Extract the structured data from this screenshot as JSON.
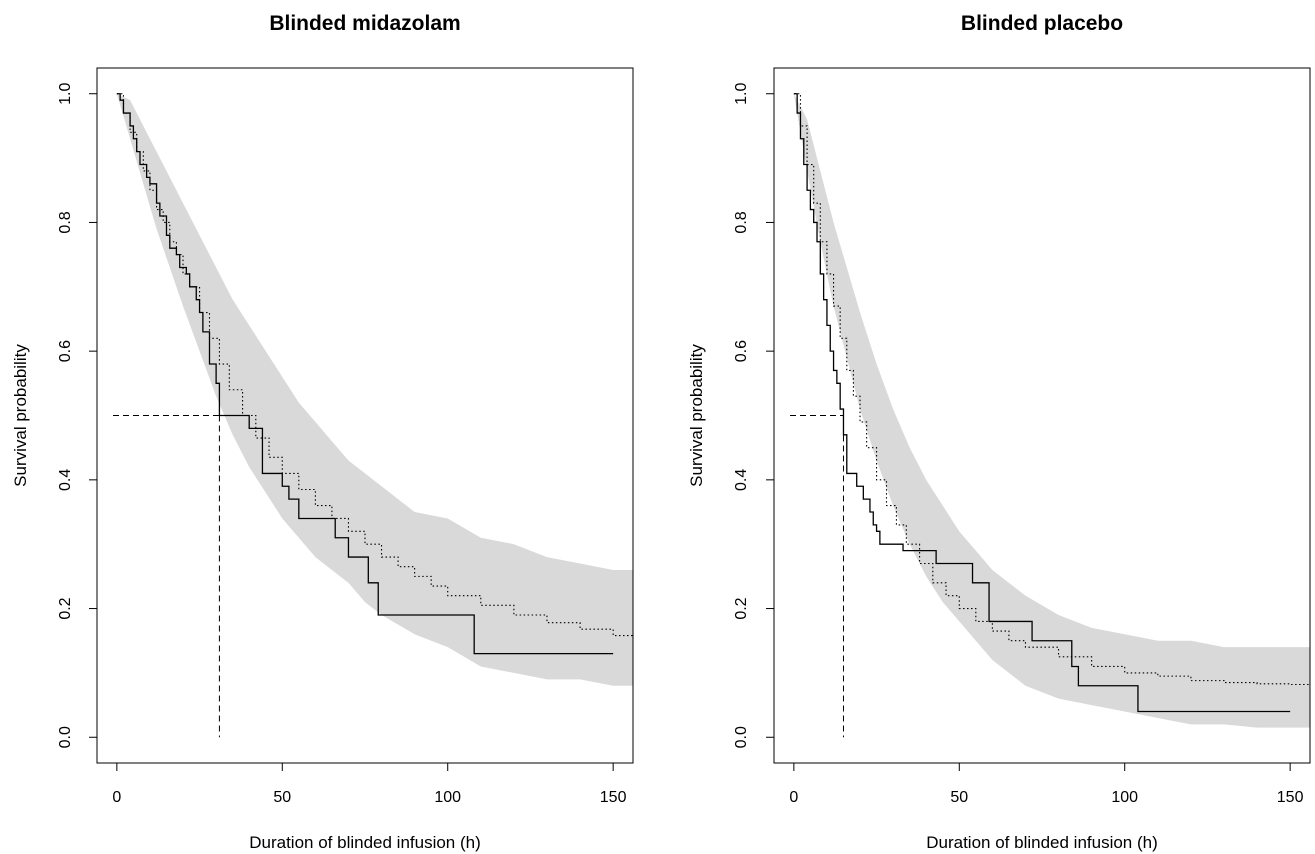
{
  "chart_data": [
    {
      "type": "line",
      "title": "Blinded midazolam",
      "xlabel": "Duration of blinded infusion (h)",
      "ylabel": "Survival probability",
      "xlim": [
        -6,
        156
      ],
      "ylim": [
        -0.04,
        1.04
      ],
      "xticks": [
        "0",
        "50",
        "100",
        "150"
      ],
      "yticks": [
        "0.0",
        "0.2",
        "0.4",
        "0.6",
        "0.8",
        "1.0"
      ],
      "grid": false,
      "legend": "none",
      "colors": {
        "band": "#d9d9d9",
        "line": "#000000"
      },
      "series": [
        {
          "style": "solid-step",
          "x": [
            0,
            1,
            2,
            4,
            5,
            6,
            7,
            9,
            10,
            12,
            13,
            15,
            16,
            18,
            19,
            21,
            22,
            24,
            25,
            26,
            28,
            30,
            31,
            40,
            44,
            50,
            52,
            55,
            66,
            70,
            76,
            79,
            108,
            150
          ],
          "y": [
            1.0,
            0.99,
            0.97,
            0.95,
            0.93,
            0.91,
            0.89,
            0.87,
            0.86,
            0.83,
            0.81,
            0.78,
            0.76,
            0.75,
            0.73,
            0.72,
            0.7,
            0.68,
            0.66,
            0.63,
            0.58,
            0.55,
            0.5,
            0.48,
            0.41,
            0.39,
            0.37,
            0.34,
            0.31,
            0.28,
            0.24,
            0.19,
            0.13,
            0.13
          ]
        },
        {
          "style": "dotted",
          "x": [
            0,
            2,
            4,
            6,
            8,
            10,
            12,
            14,
            16,
            18,
            20,
            22,
            25,
            28,
            31,
            34,
            38,
            42,
            46,
            50,
            55,
            60,
            65,
            70,
            75,
            80,
            85,
            90,
            95,
            100,
            110,
            120,
            130,
            140,
            150,
            156
          ],
          "y": [
            1.0,
            0.97,
            0.94,
            0.91,
            0.88,
            0.85,
            0.82,
            0.8,
            0.77,
            0.75,
            0.72,
            0.7,
            0.66,
            0.62,
            0.58,
            0.54,
            0.5,
            0.465,
            0.435,
            0.41,
            0.385,
            0.36,
            0.34,
            0.32,
            0.3,
            0.28,
            0.265,
            0.25,
            0.235,
            0.22,
            0.205,
            0.19,
            0.178,
            0.168,
            0.158,
            0.152
          ]
        }
      ],
      "band": {
        "x": [
          0,
          4,
          8,
          12,
          16,
          20,
          25,
          30,
          35,
          40,
          45,
          50,
          55,
          60,
          65,
          70,
          75,
          80,
          90,
          100,
          110,
          120,
          130,
          140,
          150,
          156
        ],
        "upper": [
          1.0,
          0.99,
          0.95,
          0.91,
          0.87,
          0.83,
          0.78,
          0.73,
          0.68,
          0.64,
          0.6,
          0.56,
          0.52,
          0.49,
          0.46,
          0.43,
          0.41,
          0.39,
          0.35,
          0.34,
          0.31,
          0.3,
          0.28,
          0.27,
          0.26,
          0.26
        ],
        "lower": [
          1.0,
          0.93,
          0.86,
          0.79,
          0.73,
          0.67,
          0.6,
          0.53,
          0.47,
          0.42,
          0.38,
          0.34,
          0.31,
          0.28,
          0.26,
          0.24,
          0.21,
          0.19,
          0.16,
          0.14,
          0.11,
          0.1,
          0.09,
          0.09,
          0.08,
          0.08
        ]
      },
      "median": {
        "x": 31,
        "y": 0.5
      }
    },
    {
      "type": "line",
      "title": "Blinded placebo",
      "xlabel": "Duration of blinded infusion (h)",
      "ylabel": "Survival probability",
      "xlim": [
        -6,
        156
      ],
      "ylim": [
        -0.04,
        1.04
      ],
      "xticks": [
        "0",
        "50",
        "100",
        "150"
      ],
      "yticks": [
        "0.0",
        "0.2",
        "0.4",
        "0.6",
        "0.8",
        "1.0"
      ],
      "grid": false,
      "legend": "none",
      "colors": {
        "band": "#d9d9d9",
        "line": "#000000"
      },
      "series": [
        {
          "style": "solid-step",
          "x": [
            0,
            1,
            2,
            3,
            4,
            5,
            6,
            7,
            8,
            9,
            10,
            11,
            12,
            13,
            14,
            15,
            16,
            19,
            21,
            23,
            24,
            25,
            26,
            28,
            33,
            43,
            54,
            59,
            72,
            84,
            86,
            104,
            150
          ],
          "y": [
            1.0,
            0.97,
            0.93,
            0.89,
            0.85,
            0.82,
            0.8,
            0.77,
            0.72,
            0.68,
            0.64,
            0.6,
            0.57,
            0.55,
            0.51,
            0.47,
            0.41,
            0.39,
            0.37,
            0.35,
            0.33,
            0.32,
            0.3,
            0.3,
            0.29,
            0.27,
            0.24,
            0.18,
            0.15,
            0.11,
            0.08,
            0.04,
            0.04
          ]
        },
        {
          "style": "dotted",
          "x": [
            0,
            2,
            4,
            6,
            8,
            10,
            12,
            14,
            16,
            18,
            20,
            22,
            25,
            28,
            31,
            34,
            38,
            42,
            46,
            50,
            55,
            60,
            65,
            70,
            80,
            90,
            100,
            110,
            120,
            130,
            140,
            150,
            156
          ],
          "y": [
            1.0,
            0.95,
            0.89,
            0.83,
            0.77,
            0.72,
            0.67,
            0.62,
            0.57,
            0.53,
            0.49,
            0.45,
            0.4,
            0.36,
            0.33,
            0.3,
            0.27,
            0.24,
            0.22,
            0.2,
            0.18,
            0.165,
            0.15,
            0.14,
            0.125,
            0.11,
            0.1,
            0.095,
            0.088,
            0.085,
            0.083,
            0.082,
            0.082
          ]
        }
      ],
      "band": {
        "x": [
          0,
          4,
          8,
          12,
          16,
          20,
          25,
          30,
          35,
          40,
          45,
          50,
          55,
          60,
          65,
          70,
          80,
          90,
          100,
          110,
          120,
          130,
          140,
          150,
          156
        ],
        "upper": [
          1.0,
          0.96,
          0.88,
          0.8,
          0.73,
          0.66,
          0.58,
          0.51,
          0.45,
          0.4,
          0.36,
          0.32,
          0.29,
          0.26,
          0.24,
          0.22,
          0.19,
          0.17,
          0.16,
          0.15,
          0.15,
          0.14,
          0.14,
          0.14,
          0.14
        ],
        "lower": [
          1.0,
          0.88,
          0.77,
          0.67,
          0.59,
          0.51,
          0.43,
          0.36,
          0.3,
          0.25,
          0.21,
          0.18,
          0.15,
          0.12,
          0.1,
          0.08,
          0.06,
          0.05,
          0.04,
          0.03,
          0.02,
          0.02,
          0.015,
          0.015,
          0.015
        ]
      },
      "median": {
        "x": 15,
        "y": 0.5
      }
    }
  ]
}
